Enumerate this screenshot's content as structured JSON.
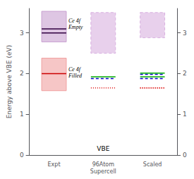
{
  "chart_data": {
    "type": "range",
    "ylabel": "Energy above VBE (eV)",
    "categories": [
      "Expt",
      "96Atom\nSupercell",
      "Scaled"
    ],
    "ylim": [
      0,
      3.6
    ],
    "yticks": [
      0,
      1,
      2,
      3
    ],
    "y2lim": [
      0,
      3.6
    ],
    "y2ticks": [
      0,
      1,
      2,
      3
    ],
    "grid": false,
    "series": [
      {
        "type": "range",
        "low": [
          2.78,
          null,
          null
        ],
        "high": [
          3.53,
          null,
          null
        ],
        "color": "#c8a0d0",
        "line_style": "solid"
      },
      {
        "type": "range",
        "low": [
          1.58,
          null,
          null
        ],
        "high": [
          2.38,
          null,
          null
        ],
        "color": "#f0a0a0",
        "line_style": "solid"
      },
      {
        "type": "range",
        "low": [
          null,
          2.5,
          2.88
        ],
        "high": [
          null,
          3.5,
          3.5
        ],
        "color": "#d8b0e0",
        "line_style": "dashed"
      },
      {
        "type": "level",
        "values": [
          3.0,
          null,
          null
        ],
        "color": "#300040",
        "line_style": "solid"
      },
      {
        "type": "level",
        "values": [
          3.1,
          null,
          null
        ],
        "color": "#300040",
        "line_style": "solid"
      },
      {
        "type": "level",
        "values": [
          2.0,
          null,
          null
        ],
        "color": "#cc0000",
        "line_style": "solid"
      },
      {
        "type": "level",
        "values": [
          null,
          1.88,
          1.88
        ],
        "color": "#0000cc",
        "line_style": "dashed"
      },
      {
        "type": "level",
        "values": [
          null,
          1.92,
          1.92
        ],
        "color": "#00aa00",
        "line_style": "solid"
      },
      {
        "type": "level",
        "values": [
          null,
          1.65,
          1.65
        ],
        "color": "#dd0000",
        "line_style": "dotted"
      },
      {
        "type": "level",
        "values": [
          null,
          null,
          1.98
        ],
        "color": "#0000cc",
        "line_style": "dashed"
      },
      {
        "type": "level",
        "values": [
          null,
          null,
          2.01
        ],
        "color": "#00aa00",
        "line_style": "solid"
      },
      {
        "type": "level",
        "values": [
          null,
          null,
          1.65
        ],
        "color": "#dd0000",
        "line_style": "dotted"
      }
    ],
    "annotations": [
      {
        "text": "Ce 4f\nEmpty",
        "category": "Expt",
        "y": 3.22
      },
      {
        "text": "Ce 4f\nFilled",
        "category": "Expt",
        "y": 2.02
      },
      {
        "text": "VBE",
        "category": "96Atom\nSupercell",
        "y": 0.07
      }
    ]
  }
}
